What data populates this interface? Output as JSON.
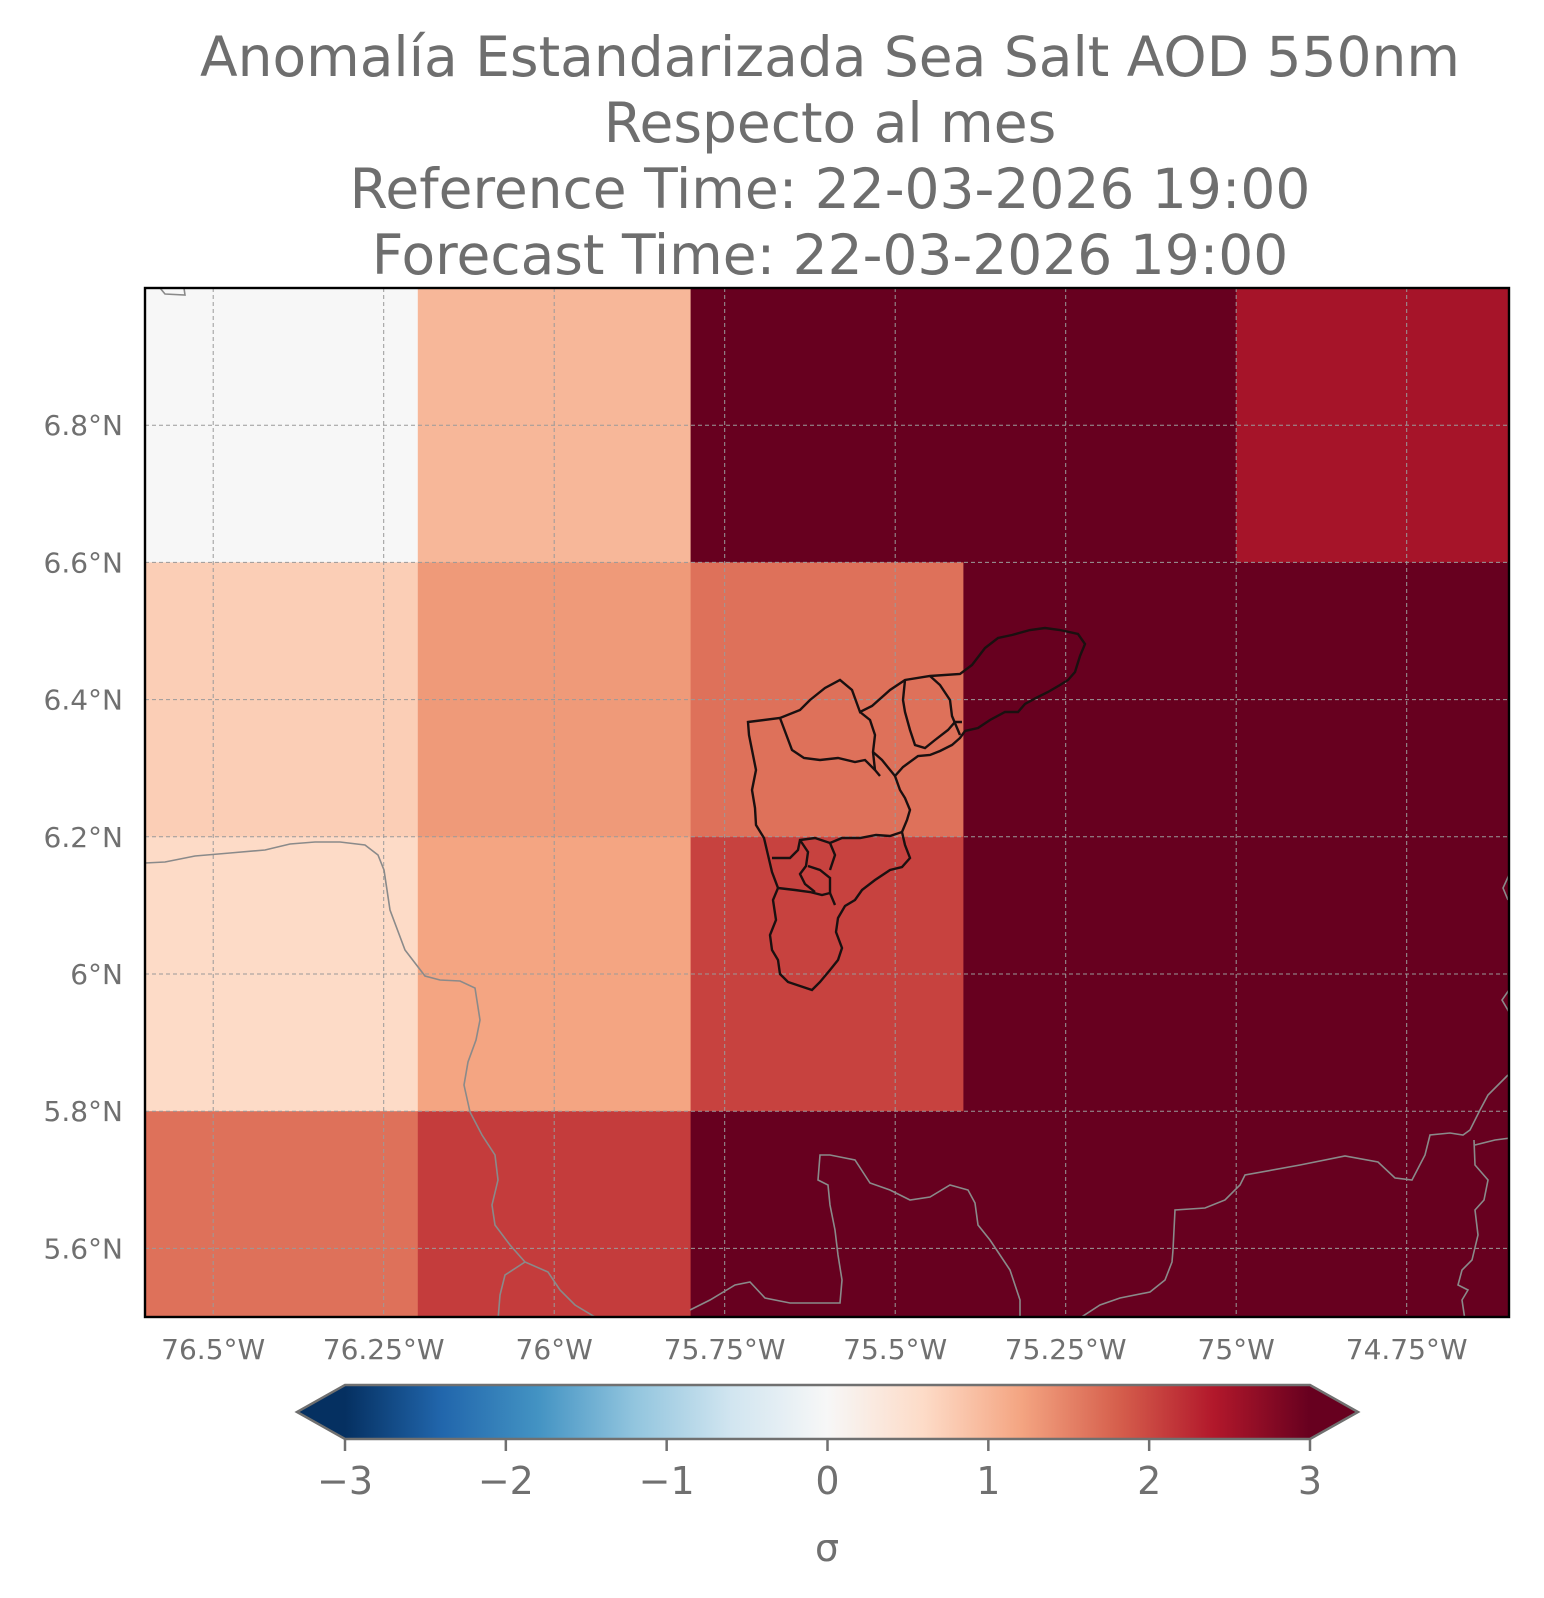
{
  "title": {
    "line1": "Anomalía Estandarizada Sea Salt AOD 550nm",
    "line2": "Respecto al mes",
    "line3": "Reference Time: 22-03-2026 19:00",
    "line4": "Forecast Time: 22-03-2026 19:00"
  },
  "chart_data": {
    "type": "heatmap",
    "projection": "plate carree (lon/lat)",
    "xlim": [
      -76.6,
      -74.6
    ],
    "ylim": [
      5.5,
      7.0
    ],
    "x_ticks": [
      -76.5,
      -76.25,
      -76.0,
      -75.75,
      -75.5,
      -75.25,
      -75.0,
      -74.75
    ],
    "x_tick_labels": [
      "76.5°W",
      "76.25°W",
      "76°W",
      "75.75°W",
      "75.5°W",
      "75.25°W",
      "75°W",
      "74.75°W"
    ],
    "y_ticks": [
      5.6,
      5.8,
      6.0,
      6.2,
      6.4,
      6.6,
      6.8
    ],
    "y_tick_labels": [
      "5.6°N",
      "5.8°N",
      "6°N",
      "6.2°N",
      "6.4°N",
      "6.6°N",
      "6.8°N"
    ],
    "grid": true,
    "cell_size_deg": [
      0.4,
      0.4
    ],
    "cells": [
      {
        "lon0": -76.6,
        "lon1": -76.2,
        "lat0": 6.6,
        "lat1": 7.0,
        "value": 0.0
      },
      {
        "lon0": -76.2,
        "lon1": -75.8,
        "lat0": 6.6,
        "lat1": 7.0,
        "value": 1.0
      },
      {
        "lon0": -75.8,
        "lon1": -75.0,
        "lat0": 6.6,
        "lat1": 7.0,
        "value": 3.0
      },
      {
        "lon0": -75.0,
        "lon1": -74.6,
        "lat0": 6.6,
        "lat1": 7.0,
        "value": 2.5
      },
      {
        "lon0": -76.6,
        "lon1": -76.2,
        "lat0": 6.2,
        "lat1": 6.6,
        "value": 0.75
      },
      {
        "lon0": -76.2,
        "lon1": -75.8,
        "lat0": 6.2,
        "lat1": 6.6,
        "value": 1.3
      },
      {
        "lon0": -75.8,
        "lon1": -75.4,
        "lat0": 6.2,
        "lat1": 6.6,
        "value": 1.65
      },
      {
        "lon0": -75.4,
        "lon1": -74.6,
        "lat0": 6.2,
        "lat1": 6.6,
        "value": 3.0
      },
      {
        "lon0": -76.6,
        "lon1": -76.2,
        "lat0": 5.8,
        "lat1": 6.2,
        "value": 0.6
      },
      {
        "lon0": -76.2,
        "lon1": -75.8,
        "lat0": 5.8,
        "lat1": 6.2,
        "value": 1.2
      },
      {
        "lon0": -75.8,
        "lon1": -75.4,
        "lat0": 5.8,
        "lat1": 6.2,
        "value": 2.05
      },
      {
        "lon0": -75.4,
        "lon1": -74.6,
        "lat0": 5.8,
        "lat1": 6.2,
        "value": 3.0
      },
      {
        "lon0": -76.6,
        "lon1": -76.2,
        "lat0": 5.4,
        "lat1": 5.8,
        "value": 1.65
      },
      {
        "lon0": -76.2,
        "lon1": -75.8,
        "lat0": 5.4,
        "lat1": 5.8,
        "value": 2.1
      },
      {
        "lon0": -75.8,
        "lon1": -74.6,
        "lat0": 5.4,
        "lat1": 5.8,
        "value": 3.0
      }
    ],
    "colorbar": {
      "colormap": "RdBu_r",
      "range": [
        -3,
        3
      ],
      "ticks": [
        -3,
        -2,
        -1,
        0,
        1,
        2,
        3
      ],
      "tick_labels": [
        "−3",
        "−2",
        "−1",
        "0",
        "1",
        "2",
        "3"
      ],
      "extend": "both",
      "label": "σ"
    }
  }
}
